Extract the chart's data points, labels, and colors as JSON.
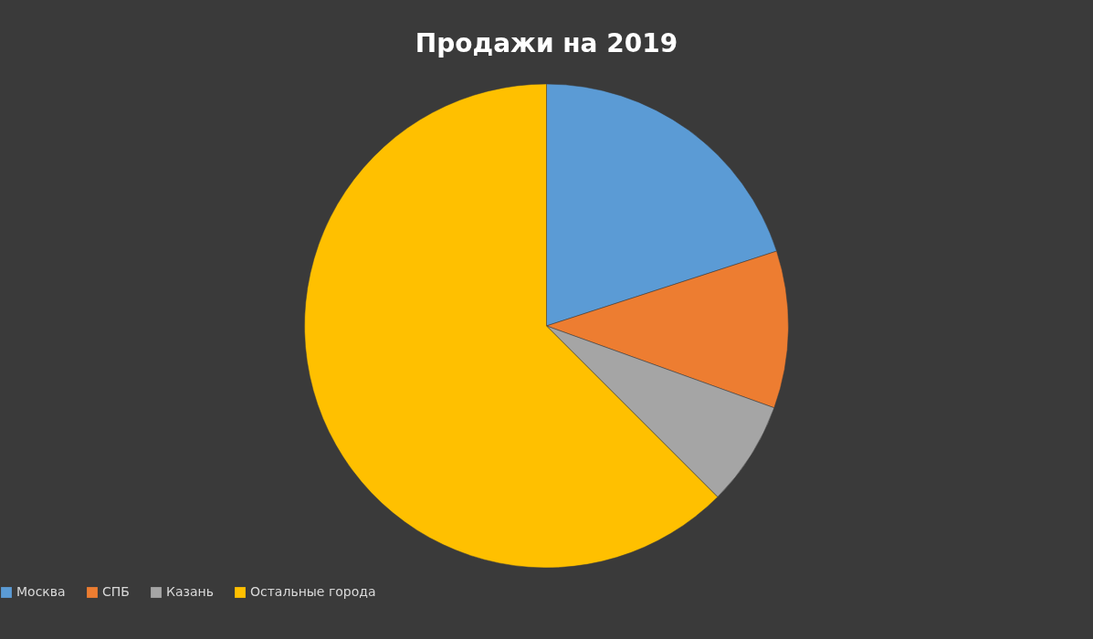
{
  "chart_data": {
    "type": "pie",
    "title": "Продажи на 2019",
    "categories": [
      "Москва",
      "СПБ",
      "Казань",
      "Остальные города"
    ],
    "values": [
      20,
      10.5,
      7,
      62.5
    ],
    "colors": [
      "#5b9bd5",
      "#ed7d31",
      "#a5a5a5",
      "#ffc000"
    ],
    "legend": "bottom"
  }
}
